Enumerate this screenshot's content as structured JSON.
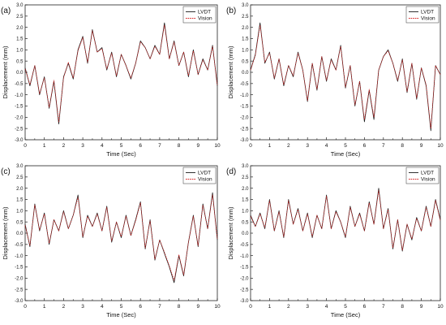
{
  "colors": {
    "lvdt": "#1a1a1a",
    "vision": "#d42020",
    "axis": "#222222",
    "background": "#ffffff"
  },
  "chart_data": [
    {
      "type": "line",
      "panel_label": "(a)",
      "xlabel": "Time (Sec)",
      "ylabel": "Displacement (mm)",
      "xlim": [
        0,
        10
      ],
      "ylim": [
        -3.0,
        3.0
      ],
      "xticks": [
        "0",
        "1",
        "2",
        "3",
        "4",
        "5",
        "6",
        "7",
        "8",
        "9",
        "10"
      ],
      "yticks": [
        "-3.0",
        "-2.5",
        "-2.0",
        "-1.5",
        "-1.0",
        "-0.5",
        "0.0",
        "0.5",
        "1.0",
        "1.5",
        "2.0",
        "2.5",
        "3.0"
      ],
      "grid": false,
      "legend_position": "top-right",
      "x": [
        0,
        0.25,
        0.5,
        0.75,
        1,
        1.25,
        1.5,
        1.75,
        2,
        2.25,
        2.5,
        2.75,
        3,
        3.25,
        3.5,
        3.75,
        4,
        4.25,
        4.5,
        4.75,
        5,
        5.25,
        5.5,
        5.75,
        6,
        6.25,
        6.5,
        6.75,
        7,
        7.25,
        7.5,
        7.75,
        8,
        8.25,
        8.5,
        8.75,
        9,
        9.25,
        9.5,
        9.75,
        10
      ],
      "series": [
        {
          "name": "LVDT",
          "style": "solid",
          "values": [
            0.2,
            -0.6,
            0.3,
            -1.0,
            -0.2,
            -1.6,
            -0.4,
            -2.3,
            -0.2,
            0.4,
            -0.3,
            1.0,
            1.6,
            0.4,
            1.9,
            0.9,
            1.1,
            0.1,
            0.9,
            -0.2,
            0.8,
            0.3,
            -0.3,
            0.4,
            1.4,
            1.1,
            0.6,
            1.2,
            0.8,
            2.2,
            0.6,
            1.4,
            0.3,
            0.9,
            -0.2,
            1.0,
            -0.1,
            0.6,
            0.1,
            1.2,
            -0.6
          ]
        },
        {
          "name": "Vision",
          "style": "dashed",
          "values": [
            0.15,
            -0.55,
            0.3,
            -0.95,
            -0.25,
            -1.55,
            -0.35,
            -2.2,
            -0.25,
            0.45,
            -0.25,
            0.95,
            1.55,
            0.45,
            1.85,
            0.9,
            1.05,
            0.15,
            0.85,
            -0.15,
            0.8,
            0.3,
            -0.25,
            0.4,
            1.35,
            1.1,
            0.6,
            1.15,
            0.8,
            2.1,
            0.6,
            1.35,
            0.3,
            0.9,
            -0.15,
            0.95,
            -0.1,
            0.55,
            0.1,
            1.15,
            -0.55
          ]
        }
      ]
    },
    {
      "type": "line",
      "panel_label": "(b)",
      "xlabel": "Time (Sec)",
      "ylabel": "Displacement (mm)",
      "xlim": [
        0,
        10
      ],
      "ylim": [
        -3.0,
        3.0
      ],
      "xticks": [
        "0",
        "1",
        "2",
        "3",
        "4",
        "5",
        "6",
        "7",
        "8",
        "9",
        "10"
      ],
      "yticks": [
        "-3.0",
        "-2.5",
        "-2.0",
        "-1.5",
        "-1.0",
        "-0.5",
        "0.0",
        "0.5",
        "1.0",
        "1.5",
        "2.0",
        "2.5",
        "3.0"
      ],
      "grid": false,
      "legend_position": "top-right",
      "x": [
        0,
        0.25,
        0.5,
        0.75,
        1,
        1.25,
        1.5,
        1.75,
        2,
        2.25,
        2.5,
        2.75,
        3,
        3.25,
        3.5,
        3.75,
        4,
        4.25,
        4.5,
        4.75,
        5,
        5.25,
        5.5,
        5.75,
        6,
        6.25,
        6.5,
        6.75,
        7,
        7.25,
        7.5,
        7.75,
        8,
        8.25,
        8.5,
        8.75,
        9,
        9.25,
        9.5,
        9.75,
        10
      ],
      "series": [
        {
          "name": "LVDT",
          "style": "solid",
          "values": [
            0.1,
            0.8,
            2.2,
            0.4,
            0.9,
            -0.3,
            0.6,
            -0.6,
            0.3,
            -0.2,
            0.9,
            0.1,
            -1.3,
            0.4,
            -0.8,
            0.7,
            -0.4,
            0.6,
            0.1,
            1.2,
            -0.7,
            0.3,
            -1.5,
            -0.4,
            -2.2,
            -0.8,
            -2.1,
            0.1,
            0.7,
            1.0,
            0.4,
            -0.4,
            0.6,
            -0.9,
            0.4,
            -1.2,
            0.2,
            -0.6,
            -2.6,
            0.3,
            -0.1
          ]
        },
        {
          "name": "Vision",
          "style": "dashed",
          "values": [
            0.1,
            0.75,
            2.1,
            0.45,
            0.85,
            -0.25,
            0.6,
            -0.55,
            0.3,
            -0.15,
            0.85,
            0.1,
            -1.25,
            0.4,
            -0.75,
            0.7,
            -0.35,
            0.55,
            0.1,
            1.15,
            -0.65,
            0.3,
            -1.45,
            -0.4,
            -2.1,
            -0.75,
            -2.0,
            0.1,
            0.7,
            0.95,
            0.4,
            -0.35,
            0.55,
            -0.85,
            0.4,
            -1.15,
            0.2,
            -0.55,
            -2.5,
            0.3,
            -0.1
          ]
        }
      ]
    },
    {
      "type": "line",
      "panel_label": "(c)",
      "xlabel": "Time (Sec)",
      "ylabel": "Displacement (mm)",
      "xlim": [
        0,
        10
      ],
      "ylim": [
        -3.0,
        3.0
      ],
      "xticks": [
        "0",
        "1",
        "2",
        "3",
        "4",
        "5",
        "6",
        "7",
        "8",
        "9",
        "10"
      ],
      "yticks": [
        "-3.0",
        "-2.5",
        "-2.0",
        "-1.5",
        "-1.0",
        "-0.5",
        "0.0",
        "0.5",
        "1.0",
        "1.5",
        "2.0",
        "2.5",
        "3.0"
      ],
      "grid": false,
      "legend_position": "top-right",
      "x": [
        0,
        0.25,
        0.5,
        0.75,
        1,
        1.25,
        1.5,
        1.75,
        2,
        2.25,
        2.5,
        2.75,
        3,
        3.25,
        3.5,
        3.75,
        4,
        4.25,
        4.5,
        4.75,
        5,
        5.25,
        5.5,
        5.75,
        6,
        6.25,
        6.5,
        6.75,
        7,
        7.25,
        7.5,
        7.75,
        8,
        8.25,
        8.5,
        8.75,
        9,
        9.25,
        9.5,
        9.75,
        10
      ],
      "series": [
        {
          "name": "LVDT",
          "style": "solid",
          "values": [
            0.4,
            -0.6,
            1.3,
            0.1,
            0.9,
            -0.5,
            0.6,
            0.1,
            1.0,
            0.2,
            0.8,
            1.7,
            -0.2,
            0.8,
            0.3,
            0.9,
            0.1,
            1.2,
            -0.4,
            0.5,
            -0.2,
            0.8,
            -0.1,
            0.6,
            1.4,
            -0.7,
            0.6,
            -1.2,
            -0.3,
            -0.9,
            -1.5,
            -2.2,
            -1.0,
            -1.9,
            -0.4,
            0.8,
            -0.6,
            1.3,
            0.2,
            1.8,
            -0.3
          ]
        },
        {
          "name": "Vision",
          "style": "dashed",
          "values": [
            0.35,
            -0.55,
            1.25,
            0.15,
            0.85,
            -0.45,
            0.6,
            0.1,
            0.95,
            0.2,
            0.8,
            1.6,
            -0.15,
            0.75,
            0.3,
            0.85,
            0.1,
            1.15,
            -0.35,
            0.5,
            -0.15,
            0.75,
            -0.1,
            0.55,
            1.35,
            -0.65,
            0.55,
            -1.15,
            -0.3,
            -0.85,
            -1.45,
            -2.1,
            -0.95,
            -1.85,
            -0.4,
            0.75,
            -0.55,
            1.25,
            0.2,
            1.7,
            -0.25
          ]
        }
      ]
    },
    {
      "type": "line",
      "panel_label": "(d)",
      "xlabel": "Time (Sec)",
      "ylabel": "Displacement (mm)",
      "xlim": [
        0,
        10
      ],
      "ylim": [
        -3.0,
        3.0
      ],
      "xticks": [
        "0",
        "1",
        "2",
        "3",
        "4",
        "5",
        "6",
        "7",
        "8",
        "9",
        "10"
      ],
      "yticks": [
        "-3.0",
        "-2.5",
        "-2.0",
        "-1.5",
        "-1.0",
        "-0.5",
        "0.0",
        "0.5",
        "1.0",
        "1.5",
        "2.0",
        "2.5",
        "3.0"
      ],
      "grid": false,
      "legend_position": "top-right",
      "x": [
        0,
        0.25,
        0.5,
        0.75,
        1,
        1.25,
        1.5,
        1.75,
        2,
        2.25,
        2.5,
        2.75,
        3,
        3.25,
        3.5,
        3.75,
        4,
        4.25,
        4.5,
        4.75,
        5,
        5.25,
        5.5,
        5.75,
        6,
        6.25,
        6.5,
        6.75,
        7,
        7.25,
        7.5,
        7.75,
        8,
        8.25,
        8.5,
        8.75,
        9,
        9.25,
        9.5,
        9.75,
        10
      ],
      "series": [
        {
          "name": "LVDT",
          "style": "solid",
          "values": [
            0.8,
            0.3,
            0.9,
            0.2,
            1.5,
            0.1,
            1.0,
            -0.2,
            1.5,
            0.4,
            1.1,
            0.1,
            0.9,
            -0.2,
            0.8,
            0.2,
            1.7,
            0.2,
            1.0,
            0.5,
            -0.2,
            1.2,
            0.3,
            0.9,
            0.1,
            1.4,
            0.4,
            2.0,
            0.2,
            1.1,
            -0.7,
            0.6,
            -0.8,
            0.4,
            -0.3,
            0.7,
            0.1,
            1.2,
            0.3,
            1.5,
            0.6
          ]
        },
        {
          "name": "Vision",
          "style": "dashed",
          "values": [
            0.75,
            0.3,
            0.85,
            0.25,
            1.45,
            0.1,
            0.95,
            -0.15,
            1.45,
            0.4,
            1.05,
            0.1,
            0.85,
            -0.15,
            0.8,
            0.2,
            1.65,
            0.2,
            0.95,
            0.5,
            -0.15,
            1.15,
            0.3,
            0.85,
            0.1,
            1.35,
            0.4,
            1.9,
            0.2,
            1.05,
            -0.65,
            0.6,
            -0.75,
            0.4,
            -0.25,
            0.65,
            0.1,
            1.15,
            0.3,
            1.45,
            0.55
          ]
        }
      ]
    }
  ]
}
